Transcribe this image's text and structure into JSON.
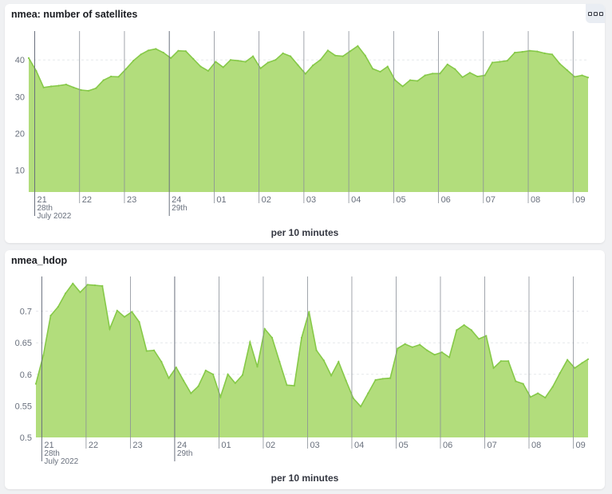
{
  "panels": [
    {
      "title": "nmea: number of satellites",
      "menu_icon": "ellipsis-icon"
    },
    {
      "title": "nmea_hdop"
    }
  ],
  "colors": {
    "area_fill": "#b2dd7c",
    "line": "#86c948",
    "gridline": "#e6e8ec",
    "vline": "#8a8f98"
  },
  "chart_data": [
    {
      "type": "area",
      "title": "nmea: number of satellites",
      "xlabel": "per 10 minutes",
      "ylabel": "",
      "ylim": [
        4,
        47
      ],
      "yticks": [
        10,
        20,
        30,
        40
      ],
      "ytick_labels": [
        "10",
        "20",
        "30",
        "40"
      ],
      "grid": true,
      "xlim": [
        "2022-07-28T20:52",
        "2022-07-29T09:20"
      ],
      "xticks": [
        {
          "t": "2022-07-28T21:00",
          "lines": [
            "21",
            "28th",
            "July 2022"
          ]
        },
        {
          "t": "2022-07-28T22:00",
          "lines": [
            "22"
          ]
        },
        {
          "t": "2022-07-28T23:00",
          "lines": [
            "23"
          ]
        },
        {
          "t": "2022-07-29T00:00",
          "lines": [
            "24",
            "29th"
          ]
        },
        {
          "t": "2022-07-29T01:00",
          "lines": [
            "01"
          ]
        },
        {
          "t": "2022-07-29T02:00",
          "lines": [
            "02"
          ]
        },
        {
          "t": "2022-07-29T03:00",
          "lines": [
            "03"
          ]
        },
        {
          "t": "2022-07-29T04:00",
          "lines": [
            "04"
          ]
        },
        {
          "t": "2022-07-29T05:00",
          "lines": [
            "05"
          ]
        },
        {
          "t": "2022-07-29T06:00",
          "lines": [
            "06"
          ]
        },
        {
          "t": "2022-07-29T07:00",
          "lines": [
            "07"
          ]
        },
        {
          "t": "2022-07-29T08:00",
          "lines": [
            "08"
          ]
        },
        {
          "t": "2022-07-29T09:00",
          "lines": [
            "09"
          ]
        }
      ],
      "x": [
        "2022-07-28T20:52",
        "2022-07-28T21:02",
        "2022-07-28T21:12",
        "2022-07-28T21:22",
        "2022-07-28T21:32",
        "2022-07-28T21:42",
        "2022-07-28T21:52",
        "2022-07-28T22:02",
        "2022-07-28T22:12",
        "2022-07-28T22:22",
        "2022-07-28T22:32",
        "2022-07-28T22:42",
        "2022-07-28T22:52",
        "2022-07-28T23:02",
        "2022-07-28T23:12",
        "2022-07-28T23:22",
        "2022-07-28T23:32",
        "2022-07-28T23:42",
        "2022-07-28T23:52",
        "2022-07-29T00:02",
        "2022-07-29T00:12",
        "2022-07-29T00:22",
        "2022-07-29T00:32",
        "2022-07-29T00:42",
        "2022-07-29T00:52",
        "2022-07-29T01:02",
        "2022-07-29T01:12",
        "2022-07-29T01:22",
        "2022-07-29T01:32",
        "2022-07-29T01:42",
        "2022-07-29T01:52",
        "2022-07-29T02:02",
        "2022-07-29T02:12",
        "2022-07-29T02:22",
        "2022-07-29T02:32",
        "2022-07-29T02:42",
        "2022-07-29T02:52",
        "2022-07-29T03:02",
        "2022-07-29T03:12",
        "2022-07-29T03:22",
        "2022-07-29T03:32",
        "2022-07-29T03:42",
        "2022-07-29T03:52",
        "2022-07-29T04:02",
        "2022-07-29T04:12",
        "2022-07-29T04:22",
        "2022-07-29T04:32",
        "2022-07-29T04:42",
        "2022-07-29T04:52",
        "2022-07-29T05:02",
        "2022-07-29T05:12",
        "2022-07-29T05:22",
        "2022-07-29T05:32",
        "2022-07-29T05:42",
        "2022-07-29T05:52",
        "2022-07-29T06:02",
        "2022-07-29T06:12",
        "2022-07-29T06:22",
        "2022-07-29T06:32",
        "2022-07-29T06:42",
        "2022-07-29T06:52",
        "2022-07-29T07:02",
        "2022-07-29T07:12",
        "2022-07-29T07:22",
        "2022-07-29T07:32",
        "2022-07-29T07:42",
        "2022-07-29T07:52",
        "2022-07-29T08:02",
        "2022-07-29T08:12",
        "2022-07-29T08:22",
        "2022-07-29T08:32",
        "2022-07-29T08:42",
        "2022-07-29T08:52",
        "2022-07-29T09:02",
        "2022-07-29T09:12",
        "2022-07-29T09:20"
      ],
      "series": [
        {
          "values": [
            40.5,
            37,
            32.5,
            32.8,
            33,
            33.3,
            32.5,
            31.8,
            31.6,
            32.3,
            34.5,
            35.5,
            35.4,
            37.5,
            39.8,
            41.5,
            42.6,
            43,
            42,
            40.5,
            42.5,
            42.4,
            40.3,
            38.2,
            37,
            39.5,
            38,
            40,
            39.8,
            39.5,
            41,
            37.7,
            39.3,
            40,
            41.8,
            41,
            38.6,
            36.2,
            38.5,
            40,
            42.6,
            41.2,
            41,
            42.4,
            43.8,
            41.2,
            37.6,
            36.8,
            38.2,
            34.5,
            32.8,
            34.5,
            34.3,
            35.8,
            36.3,
            36.3,
            38.8,
            37.5,
            35.3,
            36.5,
            35.5,
            35.8,
            39.3,
            39.5,
            39.8,
            42,
            42.2,
            42.5,
            42.3,
            41.8,
            41.5,
            39,
            37.2,
            35.4,
            35.8,
            35.2
          ]
        }
      ]
    },
    {
      "type": "area",
      "title": "nmea_hdop",
      "xlabel": "per 10 minutes",
      "ylabel": "",
      "ylim": [
        0.5,
        0.75
      ],
      "yticks": [
        0.5,
        0.55,
        0.6,
        0.65,
        0.7
      ],
      "ytick_labels": [
        "0.5",
        "0.55",
        "0.6",
        "0.65",
        "0.7"
      ],
      "grid": true,
      "xlim": [
        "2022-07-28T20:52",
        "2022-07-29T09:20"
      ],
      "xticks": [
        {
          "t": "2022-07-28T21:00",
          "lines": [
            "21",
            "28th",
            "July 2022"
          ]
        },
        {
          "t": "2022-07-28T22:00",
          "lines": [
            "22"
          ]
        },
        {
          "t": "2022-07-28T23:00",
          "lines": [
            "23"
          ]
        },
        {
          "t": "2022-07-29T00:00",
          "lines": [
            "24",
            "29th"
          ]
        },
        {
          "t": "2022-07-29T01:00",
          "lines": [
            "01"
          ]
        },
        {
          "t": "2022-07-29T02:00",
          "lines": [
            "02"
          ]
        },
        {
          "t": "2022-07-29T03:00",
          "lines": [
            "03"
          ]
        },
        {
          "t": "2022-07-29T04:00",
          "lines": [
            "04"
          ]
        },
        {
          "t": "2022-07-29T05:00",
          "lines": [
            "05"
          ]
        },
        {
          "t": "2022-07-29T06:00",
          "lines": [
            "06"
          ]
        },
        {
          "t": "2022-07-29T07:00",
          "lines": [
            "07"
          ]
        },
        {
          "t": "2022-07-29T08:00",
          "lines": [
            "08"
          ]
        },
        {
          "t": "2022-07-29T09:00",
          "lines": [
            "09"
          ]
        }
      ],
      "x": [
        "2022-07-28T20:52",
        "2022-07-28T21:02",
        "2022-07-28T21:12",
        "2022-07-28T21:22",
        "2022-07-28T21:32",
        "2022-07-28T21:42",
        "2022-07-28T21:52",
        "2022-07-28T22:02",
        "2022-07-28T22:12",
        "2022-07-28T22:22",
        "2022-07-28T22:32",
        "2022-07-28T22:42",
        "2022-07-28T22:52",
        "2022-07-28T23:02",
        "2022-07-28T23:12",
        "2022-07-28T23:22",
        "2022-07-28T23:32",
        "2022-07-28T23:42",
        "2022-07-28T23:52",
        "2022-07-29T00:02",
        "2022-07-29T00:12",
        "2022-07-29T00:22",
        "2022-07-29T00:32",
        "2022-07-29T00:42",
        "2022-07-29T00:52",
        "2022-07-29T01:02",
        "2022-07-29T01:12",
        "2022-07-29T01:22",
        "2022-07-29T01:32",
        "2022-07-29T01:42",
        "2022-07-29T01:52",
        "2022-07-29T02:02",
        "2022-07-29T02:12",
        "2022-07-29T02:22",
        "2022-07-29T02:32",
        "2022-07-29T02:42",
        "2022-07-29T02:52",
        "2022-07-29T03:02",
        "2022-07-29T03:12",
        "2022-07-29T03:22",
        "2022-07-29T03:32",
        "2022-07-29T03:42",
        "2022-07-29T03:52",
        "2022-07-29T04:02",
        "2022-07-29T04:12",
        "2022-07-29T04:22",
        "2022-07-29T04:32",
        "2022-07-29T04:42",
        "2022-07-29T04:52",
        "2022-07-29T05:02",
        "2022-07-29T05:12",
        "2022-07-29T05:22",
        "2022-07-29T05:32",
        "2022-07-29T05:42",
        "2022-07-29T05:52",
        "2022-07-29T06:02",
        "2022-07-29T06:12",
        "2022-07-29T06:22",
        "2022-07-29T06:32",
        "2022-07-29T06:42",
        "2022-07-29T06:52",
        "2022-07-29T07:02",
        "2022-07-29T07:12",
        "2022-07-29T07:22",
        "2022-07-29T07:32",
        "2022-07-29T07:42",
        "2022-07-29T07:52",
        "2022-07-29T08:02",
        "2022-07-29T08:12",
        "2022-07-29T08:22",
        "2022-07-29T08:32",
        "2022-07-29T08:42",
        "2022-07-29T08:52",
        "2022-07-29T09:02",
        "2022-07-29T09:12",
        "2022-07-29T09:20"
      ],
      "series": [
        {
          "values": [
            0.585,
            0.63,
            0.693,
            0.707,
            0.728,
            0.744,
            0.73,
            0.742,
            0.741,
            0.74,
            0.672,
            0.701,
            0.691,
            0.699,
            0.683,
            0.637,
            0.638,
            0.62,
            0.594,
            0.611,
            0.59,
            0.57,
            0.581,
            0.606,
            0.6,
            0.564,
            0.6,
            0.586,
            0.599,
            0.651,
            0.612,
            0.672,
            0.658,
            0.62,
            0.583,
            0.582,
            0.658,
            0.699,
            0.638,
            0.622,
            0.598,
            0.62,
            0.59,
            0.562,
            0.549,
            0.57,
            0.591,
            0.593,
            0.594,
            0.641,
            0.648,
            0.643,
            0.647,
            0.638,
            0.631,
            0.635,
            0.627,
            0.67,
            0.678,
            0.67,
            0.656,
            0.661,
            0.61,
            0.621,
            0.621,
            0.589,
            0.585,
            0.564,
            0.57,
            0.563,
            0.58,
            0.602,
            0.623,
            0.61,
            0.618,
            0.624
          ]
        }
      ]
    }
  ]
}
